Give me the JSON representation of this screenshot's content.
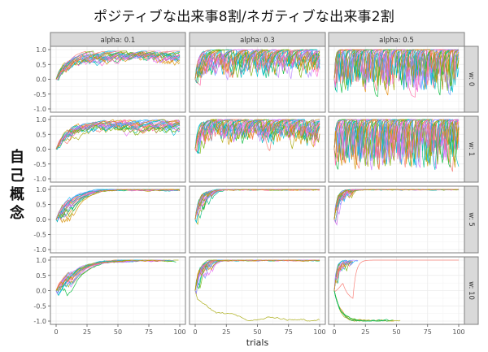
{
  "chart_data": {
    "type": "line",
    "title": "ポジティブな出来事8割/ネガティブな出来事2割",
    "xlabel": "trials",
    "ylabel": "自己概念",
    "facet_cols": [
      "alpha: 0.1",
      "alpha: 0.3",
      "alpha: 0.5"
    ],
    "facet_rows": [
      "w: 0",
      "w: 1",
      "w: 5",
      "w: 10"
    ],
    "x_ticks": [
      0,
      25,
      50,
      75,
      100
    ],
    "y_ticks": [
      1.0,
      0.5,
      0.0,
      -0.5,
      -1.0
    ],
    "y_tick_labels": [
      "1.0",
      "0.5",
      "0.0",
      "-0.5",
      "-1.0"
    ],
    "x_tick_labels": [
      "0",
      "25",
      "50",
      "75",
      "100"
    ],
    "xlim": [
      0,
      100
    ],
    "ylim": [
      -1.0,
      1.0
    ],
    "grid": true,
    "legend": "none",
    "n_series_per_panel": 20,
    "panels": [
      {
        "row": "w: 0",
        "col": "alpha: 0.1",
        "description": "gradual rise from 0 to ~0.6-0.8, moderate noise",
        "start": 0.0,
        "plateau": 0.7,
        "spread_low": 0.2
      },
      {
        "row": "w: 0",
        "col": "alpha: 0.3",
        "description": "quick rise to ~0.8, noisy oscillation 0.1-1.0",
        "start": 0.0,
        "plateau": 0.75,
        "spread_low": 0.0
      },
      {
        "row": "w: 0",
        "col": "alpha: 0.5",
        "description": "very noisy oscillation -0.3 to 1.0",
        "start": 0.0,
        "plateau": 0.7,
        "spread_low": -0.3
      },
      {
        "row": "w: 1",
        "col": "alpha: 0.1",
        "description": "gradual rise to ~0.7-0.9",
        "start": 0.0,
        "plateau": 0.8,
        "spread_low": 0.3
      },
      {
        "row": "w: 1",
        "col": "alpha: 0.3",
        "description": "quick rise, noisy 0.2-1.0",
        "start": 0.0,
        "plateau": 0.85,
        "spread_low": 0.1
      },
      {
        "row": "w: 1",
        "col": "alpha: 0.5",
        "description": "noisy -0.5 to 1.0",
        "start": 0.0,
        "plateau": 0.8,
        "spread_low": -0.5
      },
      {
        "row": "w: 5",
        "col": "alpha: 0.1",
        "description": "converges to 1.0 by ~trial 30",
        "start": 0.0,
        "plateau": 1.0,
        "converge_trial": 30
      },
      {
        "row": "w: 5",
        "col": "alpha: 0.3",
        "description": "converges to 1.0 by ~trial 15",
        "start": 0.0,
        "plateau": 1.0,
        "converge_trial": 15
      },
      {
        "row": "w: 5",
        "col": "alpha: 0.5",
        "description": "converges to 1.0 by ~trial 10",
        "start": 0.0,
        "plateau": 1.0,
        "converge_trial": 10
      },
      {
        "row": "w: 10",
        "col": "alpha: 0.1",
        "description": "converges to 1.0 by ~trial 50; one series dips to -0.25",
        "start": 0.0,
        "plateau": 1.0,
        "converge_trial": 50
      },
      {
        "row": "w: 10",
        "col": "alpha: 0.3",
        "description": "most converge to 1.0 by trial 20; one series declines to -1.0",
        "start": 0.0,
        "plateau": 1.0,
        "outlier_end": -1.0
      },
      {
        "row": "w: 10",
        "col": "alpha: 0.5",
        "description": "bimodal: several to 1.0 early, several to -1.0 by ~trial 50; one rises late to 1.0 at ~trial 20",
        "start": 0.0,
        "plateau": 1.0,
        "outlier_end": -1.0
      }
    ],
    "series_colors": [
      "#F8766D",
      "#E58700",
      "#C99800",
      "#A3A500",
      "#6BB100",
      "#00BA38",
      "#00BF7D",
      "#00C0AF",
      "#00BCD8",
      "#00B0F6",
      "#619CFF",
      "#B983FF",
      "#E76BF3",
      "#FD61D1",
      "#FF67A4",
      "#F8766D",
      "#00BFC4",
      "#7CAE00",
      "#C77CFF",
      "#D89000"
    ]
  },
  "strip_bg": "#D9D9D9",
  "panel_border": "#7F7F7F"
}
